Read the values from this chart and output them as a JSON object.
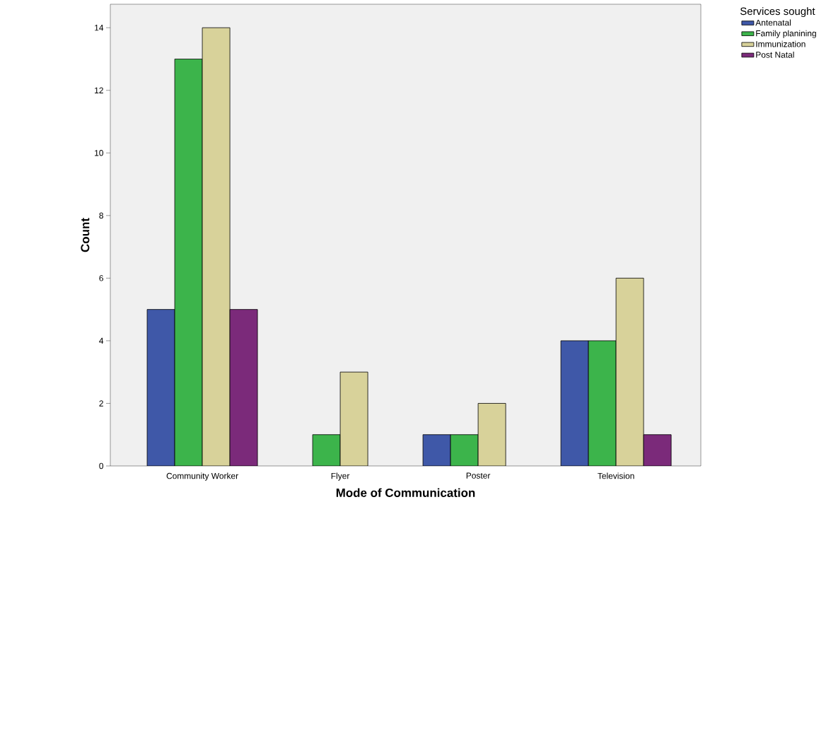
{
  "chart_data": {
    "type": "bar",
    "xlabel": "Mode of Communication",
    "ylabel": "Count",
    "legend_title": "Services sought",
    "categories": [
      "Community Worker",
      "Flyer",
      "Poster",
      "Television"
    ],
    "series": [
      {
        "name": "Antenatal",
        "color": "#3f58a8",
        "values": [
          5,
          null,
          1,
          4
        ]
      },
      {
        "name": "Family planining",
        "color": "#3cb44b",
        "values": [
          13,
          1,
          1,
          4
        ]
      },
      {
        "name": "Immunization",
        "color": "#d8d29a",
        "values": [
          14,
          3,
          2,
          6
        ]
      },
      {
        "name": "Post Natal",
        "color": "#7b2a7a",
        "values": [
          5,
          null,
          null,
          1
        ]
      }
    ],
    "ylim": [
      0,
      14.75
    ],
    "yticks": [
      0,
      2,
      4,
      6,
      8,
      10,
      12,
      14
    ],
    "legend": "right",
    "grid": false
  }
}
